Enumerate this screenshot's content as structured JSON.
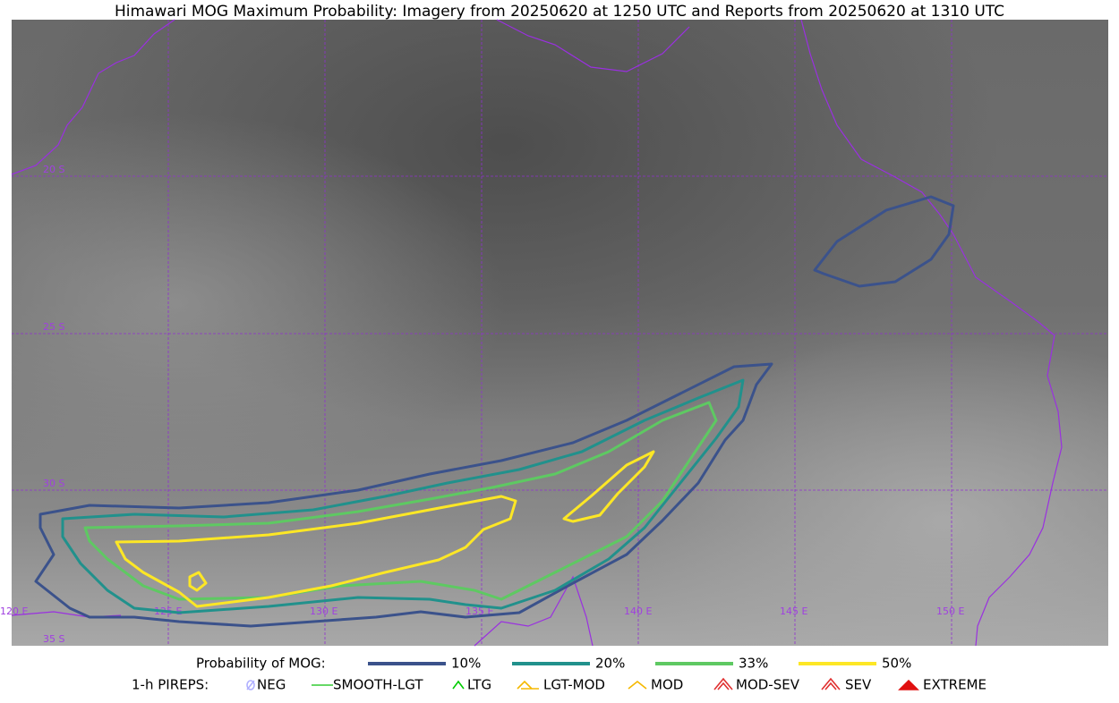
{
  "title": "Himawari MOG Maximum Probability: Imagery from 20250620 at 1250 UTC and Reports from 20250620 at 1310 UTC",
  "map": {
    "lat_labels": [
      "20 S",
      "25 S",
      "30 S",
      "35 S"
    ],
    "lon_labels": [
      "120 E",
      "125 E",
      "130 E",
      "135 E",
      "140 E",
      "145 E",
      "150 E"
    ]
  },
  "legend": {
    "probability": {
      "label": "Probability of MOG:",
      "entries": [
        {
          "label": "10%",
          "color": "#3b528b"
        },
        {
          "label": "20%",
          "color": "#21918c"
        },
        {
          "label": "33%",
          "color": "#5ec962"
        },
        {
          "label": "50%",
          "color": "#fde725"
        }
      ]
    },
    "pireps": {
      "label": "1-h PIREPS:",
      "entries": [
        {
          "label": "NEG",
          "color": "#b0b0ff"
        },
        {
          "label": "SMOOTH-LGT",
          "color": "#33cc33"
        },
        {
          "label": "LTG",
          "color": "#00cc00"
        },
        {
          "label": "LGT-MOD",
          "color": "#f5b800"
        },
        {
          "label": "MOD",
          "color": "#f5b800"
        },
        {
          "label": "MOD-SEV",
          "color": "#e03030"
        },
        {
          "label": "SEV",
          "color": "#e03030"
        },
        {
          "label": "EXTREME",
          "color": "#e01010"
        }
      ]
    }
  }
}
